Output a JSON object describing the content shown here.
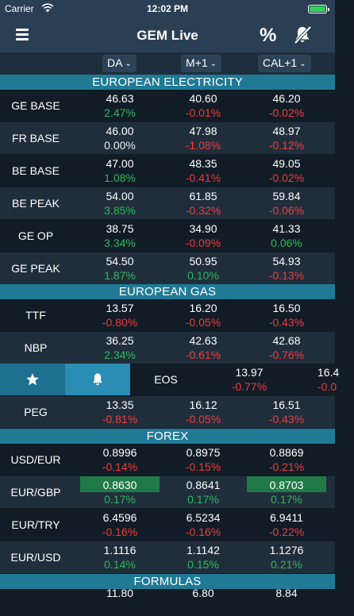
{
  "status": {
    "carrier": "Carrier",
    "time": "12:02 PM"
  },
  "nav": {
    "title": "GEM Live",
    "percent_label": "%",
    "menu_icon": "hamburger-menu-icon",
    "mute_icon": "bell-slash-icon"
  },
  "columns": [
    {
      "label": "DA"
    },
    {
      "label": "M+1"
    },
    {
      "label": "CAL+1"
    }
  ],
  "sections": {
    "electricity": "EUROPEAN ELECTRICITY",
    "gas": "EUROPEAN GAS",
    "forex": "FOREX",
    "formulas": "FORMULAS"
  },
  "rows": {
    "ge_base": {
      "name": "GE BASE",
      "v": [
        "46.63",
        "40.60",
        "46.20"
      ],
      "c": [
        "2.47%",
        "-0.01%",
        "-0.02%"
      ]
    },
    "fr_base": {
      "name": "FR BASE",
      "v": [
        "46.00",
        "47.98",
        "48.97"
      ],
      "c": [
        "0.00%",
        "-1.08%",
        "-0.12%"
      ]
    },
    "be_base": {
      "name": "BE BASE",
      "v": [
        "47.00",
        "48.35",
        "49.05"
      ],
      "c": [
        "1.08%",
        "-0.41%",
        "-0.02%"
      ]
    },
    "be_peak": {
      "name": "BE PEAK",
      "v": [
        "54.00",
        "61.85",
        "59.84"
      ],
      "c": [
        "3.85%",
        "-0.32%",
        "-0.06%"
      ]
    },
    "ge_op": {
      "name": "GE OP",
      "v": [
        "38.75",
        "34.90",
        "41.33"
      ],
      "c": [
        "3.34%",
        "-0.09%",
        "0.06%"
      ]
    },
    "ge_peak": {
      "name": "GE PEAK",
      "v": [
        "54.50",
        "50.95",
        "54.93"
      ],
      "c": [
        "1.87%",
        "0.10%",
        "-0.13%"
      ]
    },
    "ttf": {
      "name": "TTF",
      "v": [
        "13.57",
        "16.20",
        "16.50"
      ],
      "c": [
        "-0.80%",
        "-0.05%",
        "-0.43%"
      ]
    },
    "nbp": {
      "name": "NBP",
      "v": [
        "36.25",
        "42.63",
        "42.68"
      ],
      "c": [
        "2.34%",
        "-0.61%",
        "-0.76%"
      ]
    },
    "eos": {
      "name": "EOS",
      "v": [
        "13.97",
        "16.4"
      ],
      "c": [
        "-0.77%",
        "-0.0"
      ]
    },
    "peg": {
      "name": "PEG",
      "v": [
        "13.35",
        "16.12",
        "16.51"
      ],
      "c": [
        "-0.81%",
        "-0.05%",
        "-0.43%"
      ]
    },
    "usd_eur": {
      "name": "USD/EUR",
      "v": [
        "0.8996",
        "0.8975",
        "0.8869"
      ],
      "c": [
        "-0.14%",
        "-0.15%",
        "-0.21%"
      ]
    },
    "eur_gbp": {
      "name": "EUR/GBP",
      "v": [
        "0.8630",
        "0.8641",
        "0.8703"
      ],
      "c": [
        "0.17%",
        "0.17%",
        "0.17%"
      ]
    },
    "eur_try": {
      "name": "EUR/TRY",
      "v": [
        "6.4596",
        "6.5234",
        "6.9411"
      ],
      "c": [
        "-0.16%",
        "-0.16%",
        "-0.22%"
      ]
    },
    "eur_usd": {
      "name": "EUR/USD",
      "v": [
        "1.1116",
        "1.1142",
        "1.1276"
      ],
      "c": [
        "0.14%",
        "0.15%",
        "0.21%"
      ]
    },
    "formula_1": {
      "v": [
        "11.80",
        "6.80",
        "8.84"
      ]
    }
  },
  "swipe_actions": {
    "favorite_icon": "star-icon",
    "alert_icon": "bell-icon"
  },
  "colors": {
    "section": "#207a96",
    "positive": "#2fb65c",
    "negative": "#ef3b3b",
    "highlight": "#1f7a47",
    "nav": "#2b3f54"
  }
}
